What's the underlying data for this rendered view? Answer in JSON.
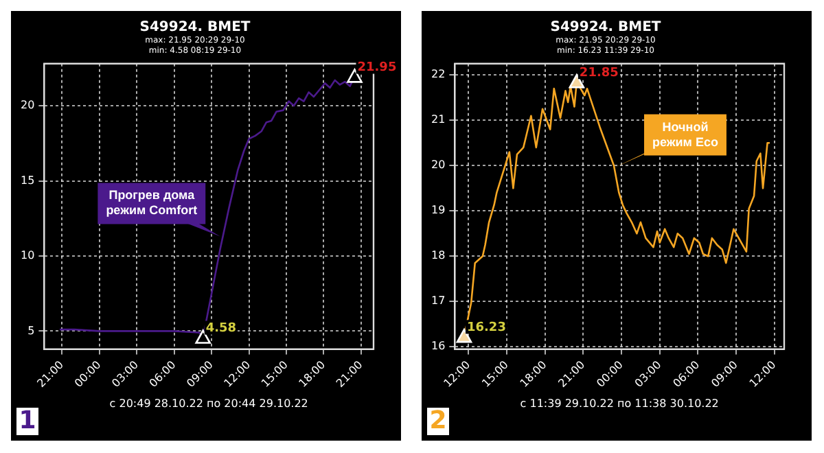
{
  "chart_data": [
    {
      "type": "line",
      "title": "S49924. BMET",
      "subtitle": "max: 21.95 20:29 29-10\nmin: 4.58 08:19 29-10",
      "xlabel": "с 20:49 28.10.22 по 20:44 29.10.22",
      "x": [
        "--10-28T20:49",
        "--10-28T22:00",
        "--10-29T00:00",
        "--10-29T02:00",
        "--10-29T04:00",
        "--10-29T06:00",
        "--10-29T08:00",
        "--10-29T08:19",
        "--10-29T09:00",
        "--10-29T09:42",
        "--10-29T10:24",
        "--10-29T11:06",
        "--10-29T11:36",
        "--10-29T12:00",
        "--10-29T12:30",
        "--10-29T13:00",
        "--10-29T13:24",
        "--10-29T13:48",
        "--10-29T14:12",
        "--10-29T14:45",
        "--10-29T15:12",
        "--10-29T15:36",
        "--10-29T16:00",
        "--10-29T16:24",
        "--10-29T16:48",
        "--10-29T17:12",
        "--10-29T17:42",
        "--10-29T18:06",
        "--10-29T18:30",
        "--10-29T18:54",
        "--10-29T19:18",
        "--10-29T19:42",
        "--10-29T20:06",
        "--10-29T20:29",
        "--10-29T20:44"
      ],
      "series": [
        {
          "color": "#4b1a8c",
          "values": [
            5.1,
            5.1,
            5.0,
            5.0,
            5.0,
            5.0,
            4.9,
            4.58,
            7.5,
            10.5,
            13.2,
            15.7,
            17.0,
            17.8,
            18.0,
            18.3,
            18.9,
            19.0,
            19.6,
            19.7,
            20.3,
            20.0,
            20.5,
            20.3,
            20.9,
            20.6,
            21.1,
            21.5,
            21.2,
            21.7,
            21.4,
            21.6,
            21.3,
            21.95,
            21.6
          ]
        }
      ],
      "xlim": [
        "--10-28T19:34",
        "--10-29T22:00"
      ],
      "xticks": [
        {
          "value": "--10-28T21:00",
          "label": "21:00"
        },
        {
          "value": "--10-29T00:00",
          "label": "00:00"
        },
        {
          "value": "--10-29T03:00",
          "label": "03:00"
        },
        {
          "value": "--10-29T06:00",
          "label": "06:00"
        },
        {
          "value": "--10-29T09:00",
          "label": "09:00"
        },
        {
          "value": "--10-29T12:00",
          "label": "12:00"
        },
        {
          "value": "--10-29T15:00",
          "label": "15:00"
        },
        {
          "value": "--10-29T18:00",
          "label": "18:00"
        },
        {
          "value": "--10-29T21:00",
          "label": "21:00"
        }
      ],
      "ylim": [
        3.8,
        22.8
      ],
      "yticks": [
        5,
        10,
        15,
        20
      ],
      "grid": true,
      "annotations": [
        {
          "text": "21.95",
          "x": "--10-29T20:29",
          "y": 21.95
        },
        {
          "text": "4.58",
          "x": "--10-29T08:19",
          "y": 4.58
        },
        {
          "text": "Прогрев дома\nрежим Comfort",
          "x": "--10-29T09:42",
          "y": 11.3
        },
        "1"
      ]
    },
    {
      "type": "line",
      "title": "S49924. BMET",
      "subtitle": "max: 21.95 20:29 29-10\nmin: 16.23 11:39 29-10",
      "xlabel": "с 11:39 29.10.22 по 11:38 30.10.22",
      "x": [
        "--10-29T11:39",
        "--10-29T12:12",
        "--10-29T12:30",
        "--10-29T13:06",
        "--10-29T13:18",
        "--10-29T13:36",
        "--10-29T14:00",
        "--10-29T14:12",
        "--10-29T14:54",
        "--10-29T15:12",
        "--10-29T15:30",
        "--10-29T15:48",
        "--10-29T16:18",
        "--10-29T16:54",
        "--10-29T17:18",
        "--10-29T17:48",
        "--10-29T18:24",
        "--10-29T18:42",
        "--10-29T19:12",
        "--10-29T19:36",
        "--10-29T19:48",
        "--10-29T20:00",
        "--10-29T20:18",
        "--10-29T20:29",
        "--10-29T21:06",
        "--10-29T21:18",
        "--10-29T22:18",
        "--10-29T23:24",
        "--10-29T23:48",
        "--10-30T00:06",
        "--10-30T00:24",
        "--10-30T00:48",
        "--10-30T01:12",
        "--10-30T01:30",
        "--10-30T01:54",
        "--10-30T02:30",
        "--10-30T02:48",
        "--10-30T03:00",
        "--10-30T03:24",
        "--10-30T03:42",
        "--10-30T04:06",
        "--10-30T04:24",
        "--10-30T04:48",
        "--10-30T05:18",
        "--10-30T05:42",
        "--10-30T06:06",
        "--10-30T06:24",
        "--10-30T06:48",
        "--10-30T07:06",
        "--10-30T07:30",
        "--10-30T07:54",
        "--10-30T08:12",
        "--10-30T08:24",
        "--10-30T08:48",
        "--10-30T09:48",
        "--10-30T10:00",
        "--10-30T10:24",
        "--10-30T10:36",
        "--10-30T10:54",
        "--10-30T11:06",
        "--10-30T11:27",
        "--10-30T11:38"
      ],
      "series": [
        {
          "color": "#f5a623",
          "values": [
            16.23,
            16.97,
            17.85,
            18.0,
            18.25,
            18.75,
            19.13,
            19.4,
            20.03,
            20.3,
            19.5,
            20.25,
            20.4,
            21.1,
            20.4,
            21.25,
            20.8,
            21.7,
            21.05,
            21.65,
            21.4,
            21.75,
            21.3,
            21.85,
            21.55,
            21.7,
            20.85,
            20.0,
            19.4,
            19.13,
            18.95,
            18.75,
            18.5,
            18.75,
            18.4,
            18.2,
            18.55,
            18.3,
            18.6,
            18.4,
            18.2,
            18.5,
            18.4,
            18.05,
            18.4,
            18.3,
            18.05,
            18.0,
            18.4,
            18.25,
            18.15,
            17.85,
            18.1,
            18.6,
            18.1,
            19.05,
            19.33,
            20.1,
            20.27,
            19.5,
            20.5,
            20.5
          ]
        }
      ],
      "xlim": [
        "--10-29T10:55",
        "--10-30T12:46"
      ],
      "xticks": [
        {
          "value": "--10-29T12:00",
          "label": "12:00"
        },
        {
          "value": "--10-29T15:00",
          "label": "15:00"
        },
        {
          "value": "--10-29T18:00",
          "label": "18:00"
        },
        {
          "value": "--10-29T21:00",
          "label": "21:00"
        },
        {
          "value": "--10-30T00:00",
          "label": "00:00"
        },
        {
          "value": "--10-30T03:00",
          "label": "03:00"
        },
        {
          "value": "--10-30T06:00",
          "label": "06:00"
        },
        {
          "value": "--10-30T09:00",
          "label": "09:00"
        },
        {
          "value": "--10-30T12:00",
          "label": "12:00"
        }
      ],
      "ylim": [
        15.95,
        22.25
      ],
      "yticks": [
        16,
        17,
        18,
        19,
        20,
        21,
        22
      ],
      "grid": true,
      "annotations": [
        {
          "text": "21.85",
          "x": "--10-29T20:29",
          "y": 21.85
        },
        {
          "text": "16.23",
          "x": "--10-29T11:39",
          "y": 16.23
        },
        {
          "text": "Ночной\nрежим Eco",
          "x": "--10-29T23:24",
          "y": 19.95
        },
        "2"
      ]
    }
  ]
}
